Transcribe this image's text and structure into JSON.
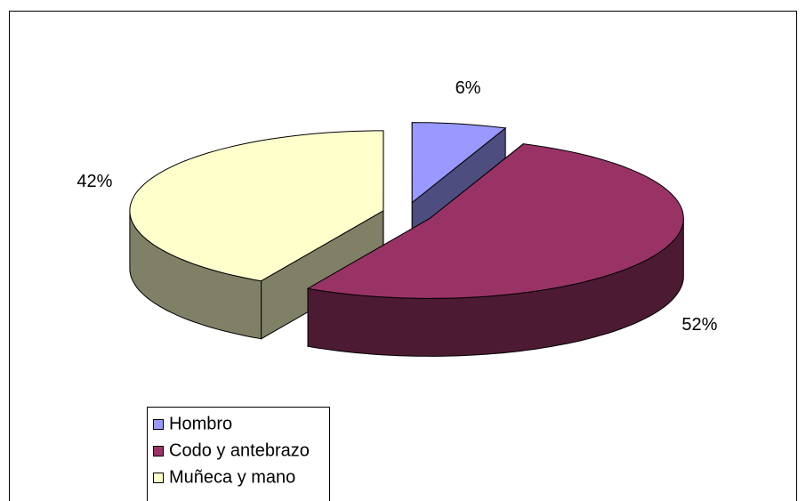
{
  "chart_data": {
    "type": "pie3d",
    "categories": [
      "Hombro",
      "Codo y antebrazo",
      "Muñeca y mano"
    ],
    "values": [
      6,
      52,
      42
    ],
    "value_labels": [
      "6%",
      "52%",
      "42%"
    ],
    "colors": [
      "#9999ff",
      "#993366",
      "#ffffcc"
    ],
    "legend": "bottom-left"
  }
}
